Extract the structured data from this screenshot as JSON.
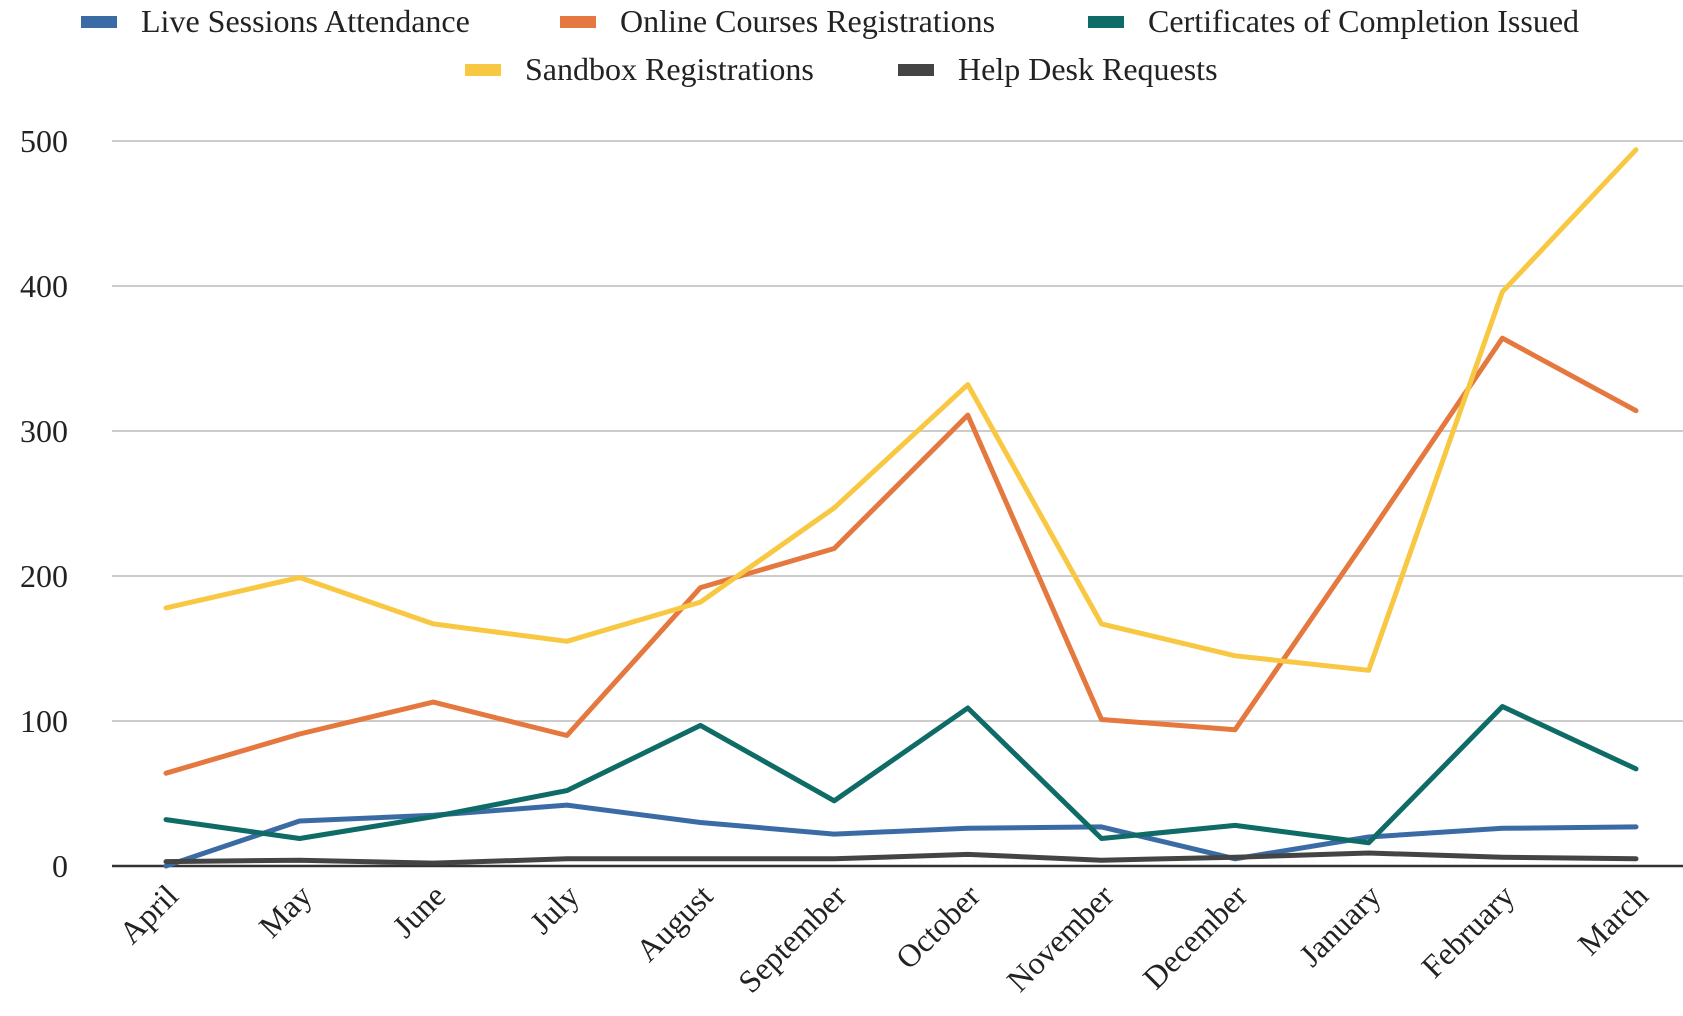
{
  "chart_data": {
    "type": "line",
    "title": "",
    "xlabel": "",
    "ylabel": "",
    "categories": [
      "April",
      "May",
      "June",
      "July",
      "August",
      "September",
      "October",
      "November",
      "December",
      "January",
      "February",
      "March"
    ],
    "ylim": [
      0,
      500
    ],
    "yticks": [
      0,
      100,
      200,
      300,
      400,
      500
    ],
    "grid": true,
    "legend_position": "top",
    "series": [
      {
        "name": "Live Sessions Attendance",
        "color": "#3B6BA5",
        "values": [
          0,
          31,
          35,
          42,
          30,
          22,
          26,
          27,
          5,
          20,
          26,
          27
        ]
      },
      {
        "name": "Online Courses Registrations",
        "color": "#E5783E",
        "values": [
          64,
          91,
          113,
          90,
          192,
          219,
          311,
          101,
          94,
          228,
          364,
          314
        ]
      },
      {
        "name": "Certificates of Completion Issued",
        "color": "#0E6B66",
        "values": [
          32,
          19,
          34,
          52,
          97,
          45,
          109,
          19,
          28,
          16,
          110,
          67
        ]
      },
      {
        "name": "Sandbox Registrations",
        "color": "#F8C842",
        "values": [
          178,
          199,
          167,
          155,
          182,
          247,
          332,
          167,
          145,
          135,
          396,
          494
        ]
      },
      {
        "name": "Help Desk Requests",
        "color": "#444444",
        "values": [
          3,
          4,
          2,
          5,
          5,
          5,
          8,
          4,
          6,
          9,
          6,
          5
        ]
      }
    ]
  }
}
